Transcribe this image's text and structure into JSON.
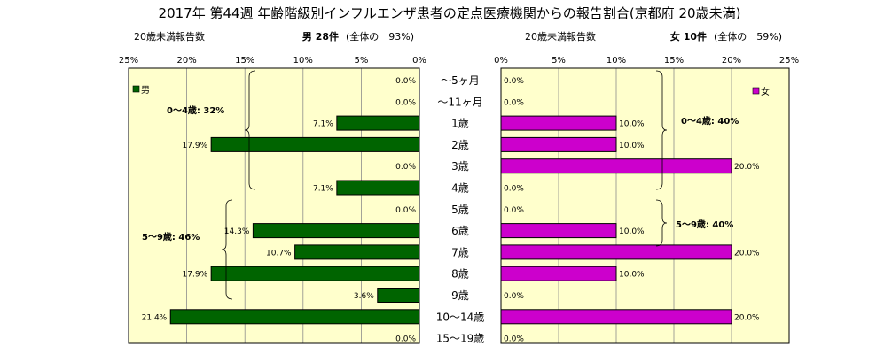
{
  "chart_data": {
    "type": "bar",
    "title": "2017年 第44週 年齢階級別インフルエンザ患者の定点医療機関からの報告割合(京都府 20歳未満)",
    "categories": [
      "～5ヶ月",
      "～11ヶ月",
      "1歳",
      "2歳",
      "3歳",
      "4歳",
      "5歳",
      "6歳",
      "7歳",
      "8歳",
      "9歳",
      "10～14歳",
      "15～19歳"
    ],
    "series": [
      {
        "name": "男",
        "color": "#006400",
        "values": [
          0.0,
          0.0,
          7.1,
          17.9,
          0.0,
          7.1,
          0.0,
          14.3,
          10.7,
          17.9,
          3.6,
          21.4,
          0.0
        ],
        "value_labels": [
          "0.0%",
          "0.0%",
          "7.1%",
          "17.9%",
          "0.0%",
          "7.1%",
          "0.0%",
          "14.3%",
          "10.7%",
          "17.9%",
          "3.6%",
          "21.4%",
          "0.0%"
        ],
        "panel_header": "男 28件",
        "panel_note": "(全体の　93%)",
        "axis_label": "20歳未満報告数",
        "tick_labels": [
          "25%",
          "20%",
          "15%",
          "10%",
          "5%",
          "0%"
        ],
        "group_labels": [
          "0～4歳: 32%",
          "5～9歳: 46%"
        ]
      },
      {
        "name": "女",
        "color": "#CC00CC",
        "values": [
          0.0,
          0.0,
          10.0,
          10.0,
          20.0,
          0.0,
          0.0,
          10.0,
          20.0,
          10.0,
          0.0,
          20.0,
          0.0
        ],
        "value_labels": [
          "0.0%",
          "0.0%",
          "10.0%",
          "10.0%",
          "20.0%",
          "0.0%",
          "0.0%",
          "10.0%",
          "20.0%",
          "10.0%",
          "0.0%",
          "20.0%",
          "0.0%"
        ],
        "panel_header": "女 10件",
        "panel_note": "(全体の　59%)",
        "axis_label": "20歳未満報告数",
        "tick_labels": [
          "0%",
          "5%",
          "10%",
          "15%",
          "20%",
          "25%"
        ],
        "group_labels": [
          "0～4歳: 40%",
          "5～9歳: 40%"
        ]
      }
    ],
    "xlim": [
      0,
      25
    ],
    "grid": true,
    "legend_position": "top"
  }
}
